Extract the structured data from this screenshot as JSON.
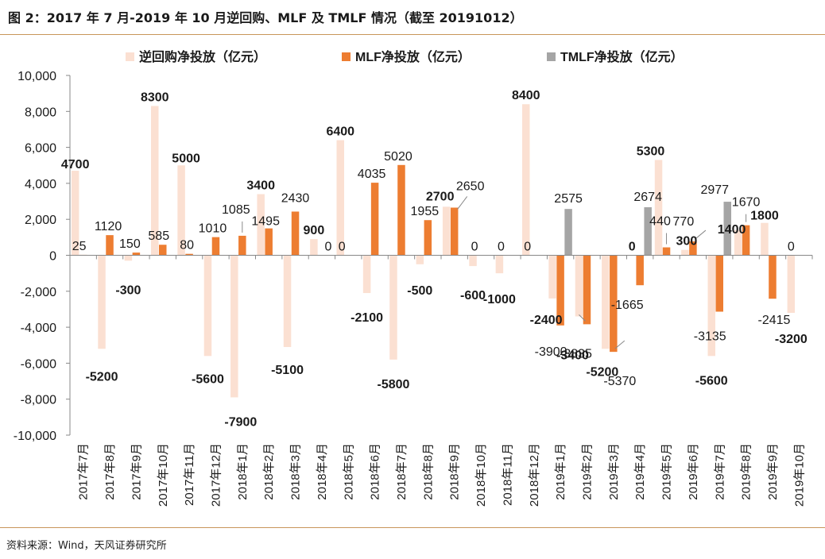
{
  "figure": {
    "title": "图 2：2017 年 7 月-2019 年 10 月逆回购、MLF 及 TMLF 情况（截至 20191012）",
    "source": "资料来源：Wind，天风证券研究所"
  },
  "colors": {
    "reverse_repo": "#fbe0d2",
    "mlf": "#ed7d31",
    "tmlf": "#a5a5a5",
    "rule": "#c8955a",
    "axis": "#888888",
    "text": "#1a1a1a"
  },
  "chart_data": {
    "type": "bar",
    "title": "",
    "xlabel": "",
    "ylabel": "",
    "ylim": [
      -10000,
      10000
    ],
    "yticks": [
      10000,
      8000,
      6000,
      4000,
      2000,
      0,
      -2000,
      -4000,
      -6000,
      -8000,
      -10000
    ],
    "ytick_labels": [
      "10,000",
      "8,000",
      "6,000",
      "4,000",
      "2,000",
      "0",
      "-2,000",
      "-4,000",
      "-6,000",
      "-8,000",
      "-10,000"
    ],
    "grid": false,
    "legend_position": "top",
    "categories": [
      "2017年7月",
      "2017年8月",
      "2017年9月",
      "2017年10月",
      "2017年11月",
      "2017年12月",
      "2018年1月",
      "2018年2月",
      "2018年3月",
      "2018年4月",
      "2018年5月",
      "2018年6月",
      "2018年7月",
      "2018年8月",
      "2018年9月",
      "2018年10月",
      "2018年11月",
      "2018年12月",
      "2019年1月",
      "2019年2月",
      "2019年3月",
      "2019年4月",
      "2019年5月",
      "2019年6月",
      "2019年7月",
      "2019年8月",
      "2019年9月",
      "2019年10月"
    ],
    "series": [
      {
        "name": "逆回购净投放（亿元）",
        "color_key": "reverse_repo",
        "values": [
          4700,
          -5200,
          -300,
          8300,
          5000,
          -5600,
          -7900,
          3400,
          -5100,
          900,
          6400,
          -2100,
          -5800,
          -500,
          2700,
          -600,
          -1000,
          8400,
          -2400,
          -3400,
          -5200,
          0,
          5300,
          300,
          -5600,
          1400,
          1800,
          -3200
        ],
        "labels": [
          "4700",
          "-5200",
          "-300",
          "8300",
          "5000",
          "-5600",
          "-7900",
          "3400",
          "-5100",
          "900",
          "6400",
          "-2100",
          "-5800",
          "-500",
          "2700",
          "-600",
          "-1000",
          "8400",
          "-2400",
          "-3400",
          "-5200",
          "0",
          "5300",
          "300",
          "-5600",
          "1400",
          "1800",
          "-3200"
        ]
      },
      {
        "name": "MLF净投放（亿元）",
        "color_key": "mlf",
        "values": [
          25,
          1120,
          150,
          585,
          80,
          1010,
          1085,
          1495,
          2430,
          0,
          0,
          4035,
          5020,
          1955,
          2650,
          0,
          0,
          0,
          -3900,
          -3835,
          -5370,
          -1665,
          440,
          770,
          -3135,
          1670,
          -2415,
          0
        ],
        "labels": [
          "25",
          "1120",
          "150",
          "585",
          "80",
          "1010",
          "1085",
          "1495",
          "2430",
          "0",
          "0",
          "4035",
          "5020",
          "1955",
          "2650",
          "0",
          "0",
          "0",
          "-3900",
          "-3835",
          "-5370",
          "-1665",
          "440",
          "770",
          "-3135",
          "1670",
          "-2415",
          "0"
        ]
      },
      {
        "name": "TMLF净投放（亿元）",
        "color_key": "tmlf",
        "values": [
          null,
          null,
          null,
          null,
          null,
          null,
          null,
          null,
          null,
          null,
          null,
          null,
          null,
          null,
          null,
          null,
          null,
          null,
          2575,
          null,
          null,
          2674,
          null,
          null,
          2977,
          null,
          null,
          null
        ],
        "labels": [
          "",
          "",
          "",
          "",
          "",
          "",
          "",
          "",
          "",
          "",
          "",
          "",
          "",
          "",
          "",
          "",
          "",
          "",
          "2575",
          "",
          "",
          "2674",
          "",
          "",
          "2977",
          "",
          "",
          ""
        ]
      }
    ]
  }
}
